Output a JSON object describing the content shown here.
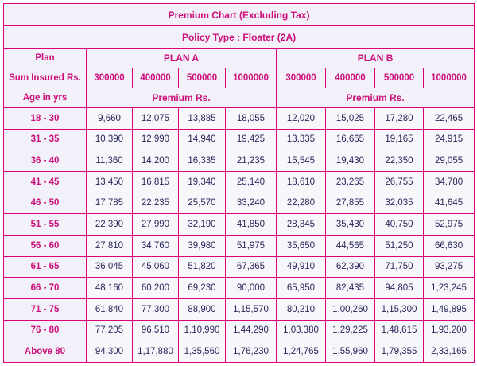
{
  "title": "Premium Chart  (Excluding Tax)",
  "policy_type": "Policy Type : Floater (2A)",
  "labels": {
    "plan": "Plan",
    "sum_insured": "Sum Insured Rs.",
    "age": "Age in yrs",
    "premium_a": "Premium Rs.",
    "premium_b": "Premium Rs."
  },
  "plans": [
    "PLAN A",
    "PLAN B"
  ],
  "sums": [
    "300000",
    "400000",
    "500000",
    "1000000",
    "300000",
    "400000",
    "500000",
    "1000000"
  ],
  "rows": [
    {
      "age": "18 - 30",
      "v": [
        "9,660",
        "12,075",
        "13,885",
        "18,055",
        "12,020",
        "15,025",
        "17,280",
        "22,465"
      ]
    },
    {
      "age": "31 - 35",
      "v": [
        "10,390",
        "12,990",
        "14,940",
        "19,425",
        "13,335",
        "16,665",
        "19,165",
        "24,915"
      ]
    },
    {
      "age": "36 - 40",
      "v": [
        "11,360",
        "14,200",
        "16,335",
        "21,235",
        "15,545",
        "19,430",
        "22,350",
        "29,055"
      ]
    },
    {
      "age": "41 - 45",
      "v": [
        "13,450",
        "16,815",
        "19,340",
        "25,140",
        "18,610",
        "23,265",
        "26,755",
        "34,780"
      ]
    },
    {
      "age": "46 - 50",
      "v": [
        "17,785",
        "22,235",
        "25,570",
        "33,240",
        "22,280",
        "27,855",
        "32,035",
        "41,645"
      ]
    },
    {
      "age": "51 - 55",
      "v": [
        "22,390",
        "27,990",
        "32,190",
        "41,850",
        "28,345",
        "35,430",
        "40,750",
        "52,975"
      ]
    },
    {
      "age": "56 - 60",
      "v": [
        "27,810",
        "34,760",
        "39,980",
        "51,975",
        "35,650",
        "44,565",
        "51,250",
        "66,630"
      ]
    },
    {
      "age": "61 - 65",
      "v": [
        "36,045",
        "45,060",
        "51,820",
        "67,365",
        "49,910",
        "62,390",
        "71,750",
        "93,275"
      ]
    },
    {
      "age": "66 - 70",
      "v": [
        "48,160",
        "60,200",
        "69,230",
        "90,000",
        "65,950",
        "82,435",
        "94,805",
        "1,23,245"
      ]
    },
    {
      "age": "71 - 75",
      "v": [
        "61,840",
        "77,300",
        "88,900",
        "1,15,570",
        "80,210",
        "1,00,260",
        "1,15,300",
        "1,49,895"
      ]
    },
    {
      "age": "76 - 80",
      "v": [
        "77,205",
        "96,510",
        "1,10,990",
        "1,44,290",
        "1,03,380",
        "1,29,225",
        "1,48,615",
        "1,93,200"
      ]
    },
    {
      "age": "Above 80",
      "v": [
        "94,300",
        "1,17,880",
        "1,35,560",
        "1,76,230",
        "1,24,765",
        "1,55,960",
        "1,79,355",
        "2,33,165"
      ]
    }
  ],
  "colors": {
    "border": "#e0007a",
    "header_text": "#cc0f7a",
    "body_text": "#28285a",
    "header_bg": "#f2f0f8"
  }
}
